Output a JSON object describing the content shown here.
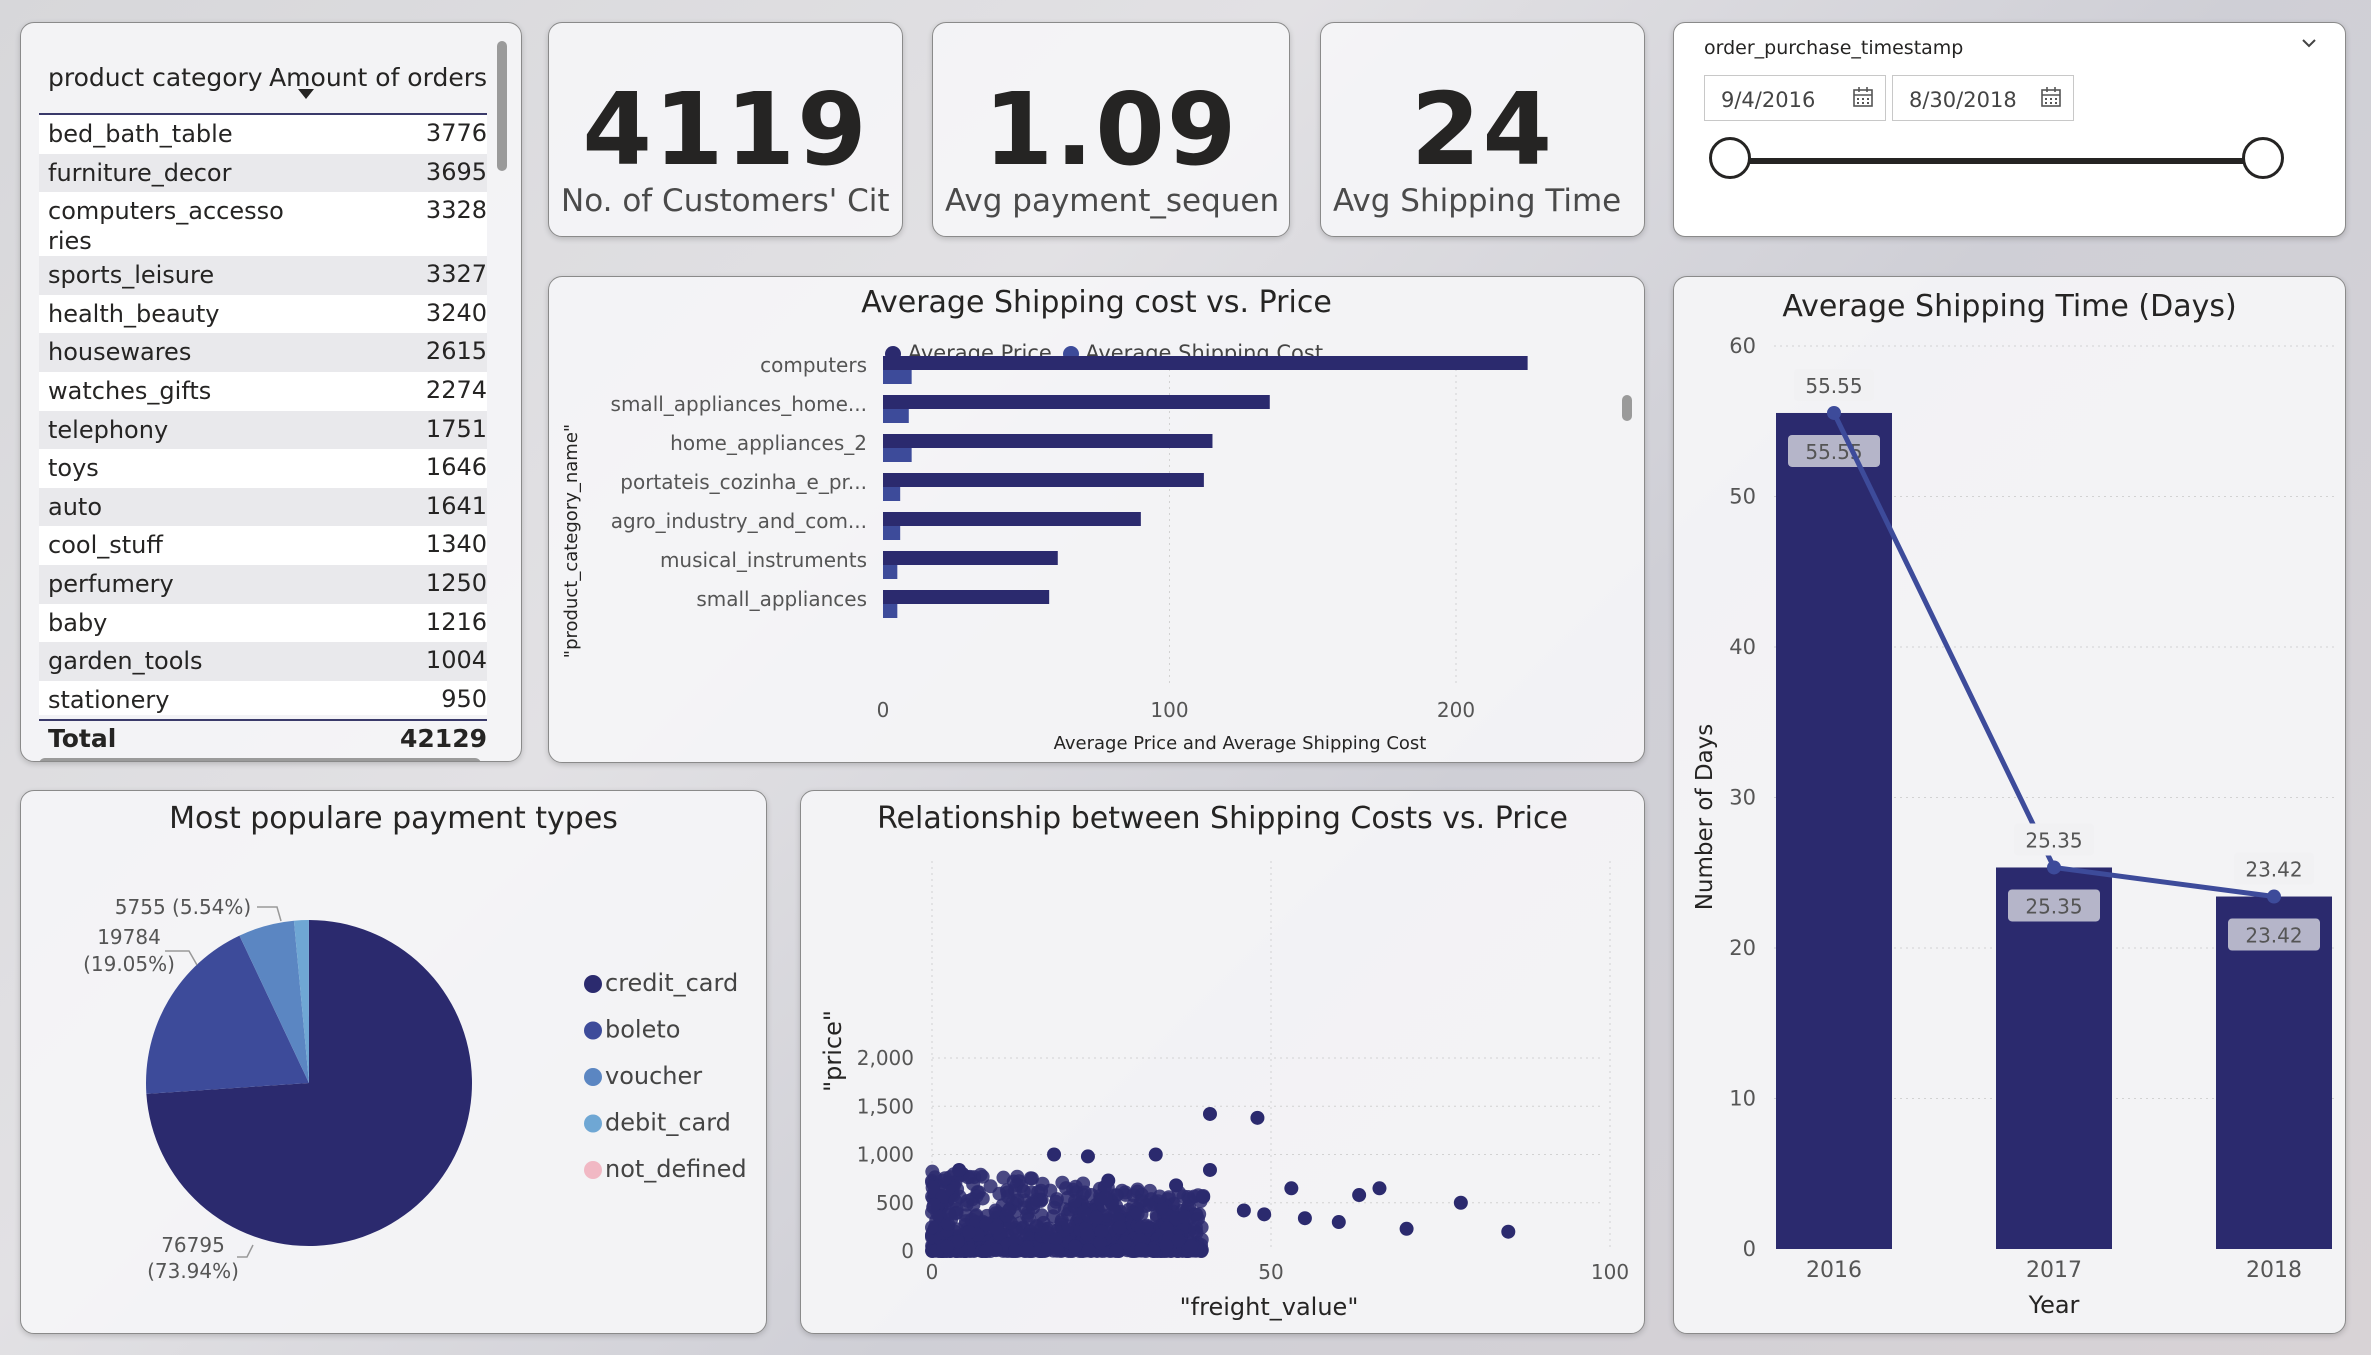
{
  "table": {
    "col1": "product category",
    "col2": "Amount of orders",
    "rows": [
      {
        "category": "bed_bath_table",
        "orders": "3776"
      },
      {
        "category": "furniture_decor",
        "orders": "3695"
      },
      {
        "category": "computers_accesso ries",
        "orders": "3328"
      },
      {
        "category": "sports_leisure",
        "orders": "3327"
      },
      {
        "category": "health_beauty",
        "orders": "3240"
      },
      {
        "category": "housewares",
        "orders": "2615"
      },
      {
        "category": "watches_gifts",
        "orders": "2274"
      },
      {
        "category": "telephony",
        "orders": "1751"
      },
      {
        "category": "toys",
        "orders": "1646"
      },
      {
        "category": "auto",
        "orders": "1641"
      },
      {
        "category": "cool_stuff",
        "orders": "1340"
      },
      {
        "category": "perfumery",
        "orders": "1250"
      },
      {
        "category": "baby",
        "orders": "1216"
      },
      {
        "category": "garden_tools",
        "orders": "1004"
      },
      {
        "category": "stationery",
        "orders": "950"
      }
    ],
    "total_label": "Total",
    "total_value": "42129"
  },
  "kpis": [
    {
      "value": "4119",
      "label": "No. of Customers' Cities"
    },
    {
      "value": "1.09",
      "label": "Avg payment_sequential"
    },
    {
      "value": "24",
      "label": "Avg Shipping Time (..."
    }
  ],
  "slicer": {
    "title": "order_purchase_timestamp",
    "start": "9/4/2016",
    "end": "8/30/2018"
  },
  "colors": {
    "navy": "#2b2a6e",
    "mid": "#3d4b9a",
    "blue": "#5b86c2",
    "light": "#6fa7d4",
    "pink": "#f1b8c4",
    "grid": "#d2d2d2"
  },
  "chart_data": [
    {
      "type": "bar",
      "title": "Average Shipping cost vs. Price",
      "legend": [
        "Average Price",
        "Average Shipping Cost"
      ],
      "categories": [
        "computers",
        "small_appliances_home...",
        "home_appliances_2",
        "portateis_cozinha_e_pr...",
        "agro_industry_and_com...",
        "musical_instruments",
        "small_appliances"
      ],
      "series": [
        {
          "name": "Average Price",
          "values": [
            225,
            135,
            115,
            112,
            90,
            61,
            58
          ]
        },
        {
          "name": "Average Shipping Cost",
          "values": [
            10,
            9,
            10,
            6,
            6,
            5,
            5
          ]
        }
      ],
      "xlabel": "Average Price and Average Shipping Cost",
      "ylabel": "\"product_category_name\"",
      "xticks": [
        "0",
        "100",
        "200"
      ],
      "xlim": [
        0,
        240
      ]
    },
    {
      "type": "bar",
      "title": "Average Shipping Time (Days)",
      "categories": [
        "2016",
        "2017",
        "2018"
      ],
      "values": [
        55.55,
        25.35,
        23.42
      ],
      "labels": [
        "55.55",
        "25.35",
        "23.42"
      ],
      "xlabel": "Year",
      "ylabel": "Number of Days",
      "ylim": [
        0,
        60
      ],
      "yticks": [
        "0",
        "10",
        "20",
        "30",
        "40",
        "50",
        "60"
      ]
    },
    {
      "type": "pie",
      "title": "Most populare payment types",
      "slices": [
        {
          "name": "credit_card",
          "value": 76795,
          "percent": 73.94
        },
        {
          "name": "boleto",
          "value": 19784,
          "percent": 19.05
        },
        {
          "name": "voucher",
          "value": 5755,
          "percent": 5.54
        },
        {
          "name": "debit_card",
          "value": 1529,
          "percent": 1.47
        },
        {
          "name": "not_defined",
          "value": 3,
          "percent": 0.0
        }
      ],
      "labels": [
        {
          "a": "76795",
          "b": "(73.94%)"
        },
        {
          "a": "19784",
          "b": "(19.05%)"
        },
        {
          "a": "5755 (5.54%)",
          "b": ""
        }
      ]
    },
    {
      "type": "scatter",
      "title": "Relationship between Shipping Costs vs. Price",
      "xlabel": "\"freight_value\"",
      "ylabel": "\"price\"",
      "xlim": [
        0,
        100
      ],
      "ylim": [
        0,
        2000
      ],
      "xticks": [
        "0",
        "50",
        "100"
      ],
      "yticks": [
        "0",
        "500",
        "1,000",
        "1,500",
        "2,000"
      ],
      "outliers": [
        [
          41,
          1420
        ],
        [
          48,
          1380
        ],
        [
          33,
          1000
        ],
        [
          41,
          840
        ],
        [
          4,
          840
        ],
        [
          53,
          650
        ],
        [
          66,
          650
        ],
        [
          63,
          580
        ],
        [
          78,
          500
        ],
        [
          85,
          200
        ],
        [
          70,
          230
        ],
        [
          60,
          300
        ],
        [
          55,
          340
        ],
        [
          49,
          380
        ],
        [
          36,
          680
        ],
        [
          40,
          560
        ],
        [
          46,
          420
        ],
        [
          26,
          730
        ],
        [
          18,
          1000
        ],
        [
          23,
          980
        ]
      ]
    }
  ]
}
